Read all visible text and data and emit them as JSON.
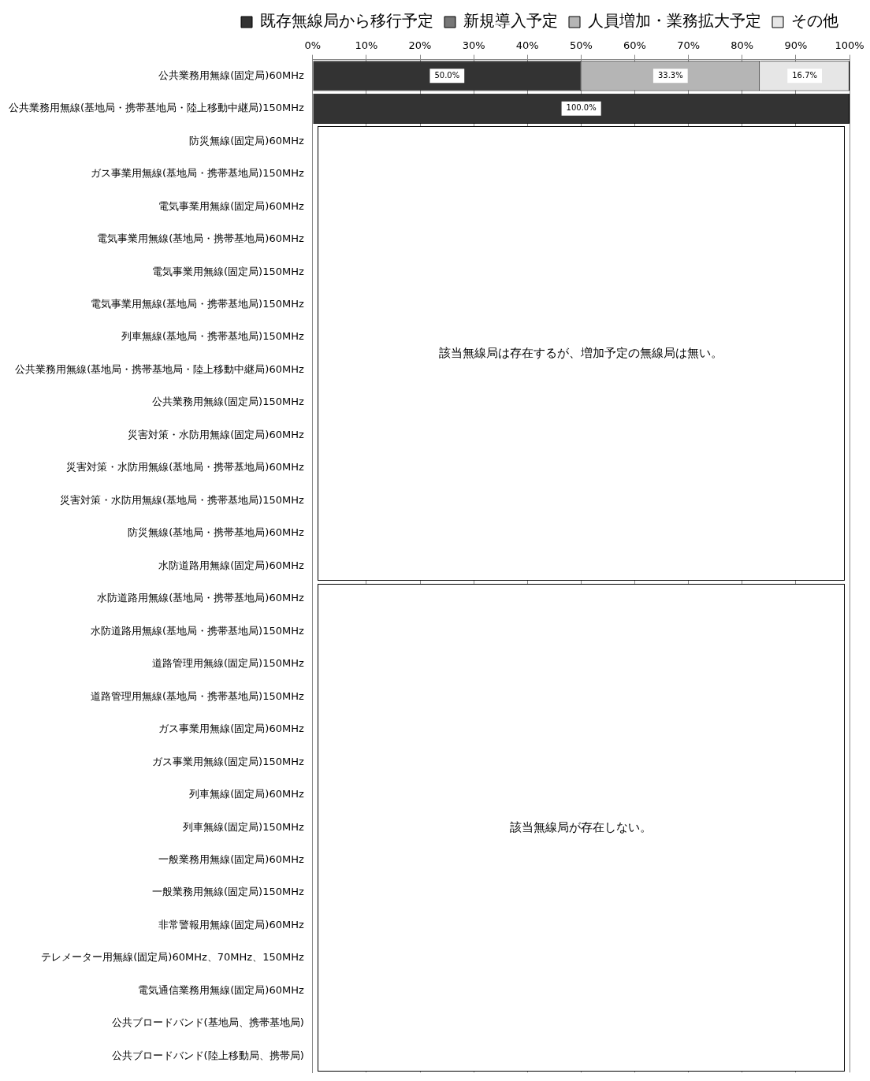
{
  "chart_data": {
    "type": "bar",
    "orientation": "horizontal",
    "stacked": true,
    "categories": [
      "公共業務用無線(固定局)60MHz",
      "公共業務用無線(基地局・携帯基地局・陸上移動中継局)150MHz",
      "防災無線(固定局)60MHz",
      "ガス事業用無線(基地局・携帯基地局)150MHz",
      "電気事業用無線(固定局)60MHz",
      "電気事業用無線(基地局・携帯基地局)60MHz",
      "電気事業用無線(固定局)150MHz",
      "電気事業用無線(基地局・携帯基地局)150MHz",
      "列車無線(基地局・携帯基地局)150MHz",
      "公共業務用無線(基地局・携帯基地局・陸上移動中継局)60MHz",
      "公共業務用無線(固定局)150MHz",
      "災害対策・水防用無線(固定局)60MHz",
      "災害対策・水防用無線(基地局・携帯基地局)60MHz",
      "災害対策・水防用無線(基地局・携帯基地局)150MHz",
      "防災無線(基地局・携帯基地局)60MHz",
      "水防道路用無線(固定局)60MHz",
      "水防道路用無線(基地局・携帯基地局)60MHz",
      "水防道路用無線(基地局・携帯基地局)150MHz",
      "道路管理用無線(固定局)150MHz",
      "道路管理用無線(基地局・携帯基地局)150MHz",
      "ガス事業用無線(固定局)60MHz",
      "ガス事業用無線(固定局)150MHz",
      "列車無線(固定局)60MHz",
      "列車無線(固定局)150MHz",
      "一般業務用無線(固定局)60MHz",
      "一般業務用無線(固定局)150MHz",
      "非常警報用無線(固定局)60MHz",
      "テレメーター用無線(固定局)60MHz、70MHz、150MHz",
      "電気通信業務用無線(固定局)60MHz",
      "公共ブロードバンド(基地局、携帯基地局)",
      "公共ブロードバンド(陸上移動局、携帯局)"
    ],
    "series": [
      {
        "name": "既存無線局から移行予定",
        "color": "#333333",
        "values": [
          50.0,
          100.0,
          null,
          null,
          null,
          null,
          null,
          null,
          null,
          null,
          null,
          null,
          null,
          null,
          null,
          null,
          null,
          null,
          null,
          null,
          null,
          null,
          null,
          null,
          null,
          null,
          null,
          null,
          null,
          null,
          null
        ],
        "value_labels": [
          "50.0%",
          "100.0%",
          null,
          null,
          null,
          null,
          null,
          null,
          null,
          null,
          null,
          null,
          null,
          null,
          null,
          null,
          null,
          null,
          null,
          null,
          null,
          null,
          null,
          null,
          null,
          null,
          null,
          null,
          null,
          null,
          null
        ]
      },
      {
        "name": "新規導入予定",
        "color": "#777777",
        "values": [
          null,
          null,
          null,
          null,
          null,
          null,
          null,
          null,
          null,
          null,
          null,
          null,
          null,
          null,
          null,
          null,
          null,
          null,
          null,
          null,
          null,
          null,
          null,
          null,
          null,
          null,
          null,
          null,
          null,
          null,
          null
        ]
      },
      {
        "name": "人員増加・業務拡大予定",
        "color": "#b5b5b5",
        "values": [
          33.3,
          null,
          null,
          null,
          null,
          null,
          null,
          null,
          null,
          null,
          null,
          null,
          null,
          null,
          null,
          null,
          null,
          null,
          null,
          null,
          null,
          null,
          null,
          null,
          null,
          null,
          null,
          null,
          null,
          null,
          null
        ],
        "value_labels": [
          "33.3%",
          null,
          null,
          null,
          null,
          null,
          null,
          null,
          null,
          null,
          null,
          null,
          null,
          null,
          null,
          null,
          null,
          null,
          null,
          null,
          null,
          null,
          null,
          null,
          null,
          null,
          null,
          null,
          null,
          null,
          null
        ]
      },
      {
        "name": "その他",
        "color": "#e6e6e6",
        "values": [
          16.7,
          null,
          null,
          null,
          null,
          null,
          null,
          null,
          null,
          null,
          null,
          null,
          null,
          null,
          null,
          null,
          null,
          null,
          null,
          null,
          null,
          null,
          null,
          null,
          null,
          null,
          null,
          null,
          null,
          null,
          null
        ],
        "value_labels": [
          "16.7%",
          null,
          null,
          null,
          null,
          null,
          null,
          null,
          null,
          null,
          null,
          null,
          null,
          null,
          null,
          null,
          null,
          null,
          null,
          null,
          null,
          null,
          null,
          null,
          null,
          null,
          null,
          null,
          null,
          null,
          null
        ]
      }
    ],
    "xlim": [
      0,
      100
    ],
    "xticks": [
      {
        "value": 0,
        "label": "0%"
      },
      {
        "value": 10,
        "label": "10%"
      },
      {
        "value": 20,
        "label": "20%"
      },
      {
        "value": 30,
        "label": "30%"
      },
      {
        "value": 40,
        "label": "40%"
      },
      {
        "value": 50,
        "label": "50%"
      },
      {
        "value": 60,
        "label": "60%"
      },
      {
        "value": 70,
        "label": "70%"
      },
      {
        "value": 80,
        "label": "80%"
      },
      {
        "value": 90,
        "label": "90%"
      },
      {
        "value": 100,
        "label": "100%"
      }
    ],
    "grid": "x",
    "legend": "top",
    "annotations": [
      "該当無線局は存在するが、増加予定の無線局は無い。",
      "該当無線局が存在しない。"
    ]
  }
}
